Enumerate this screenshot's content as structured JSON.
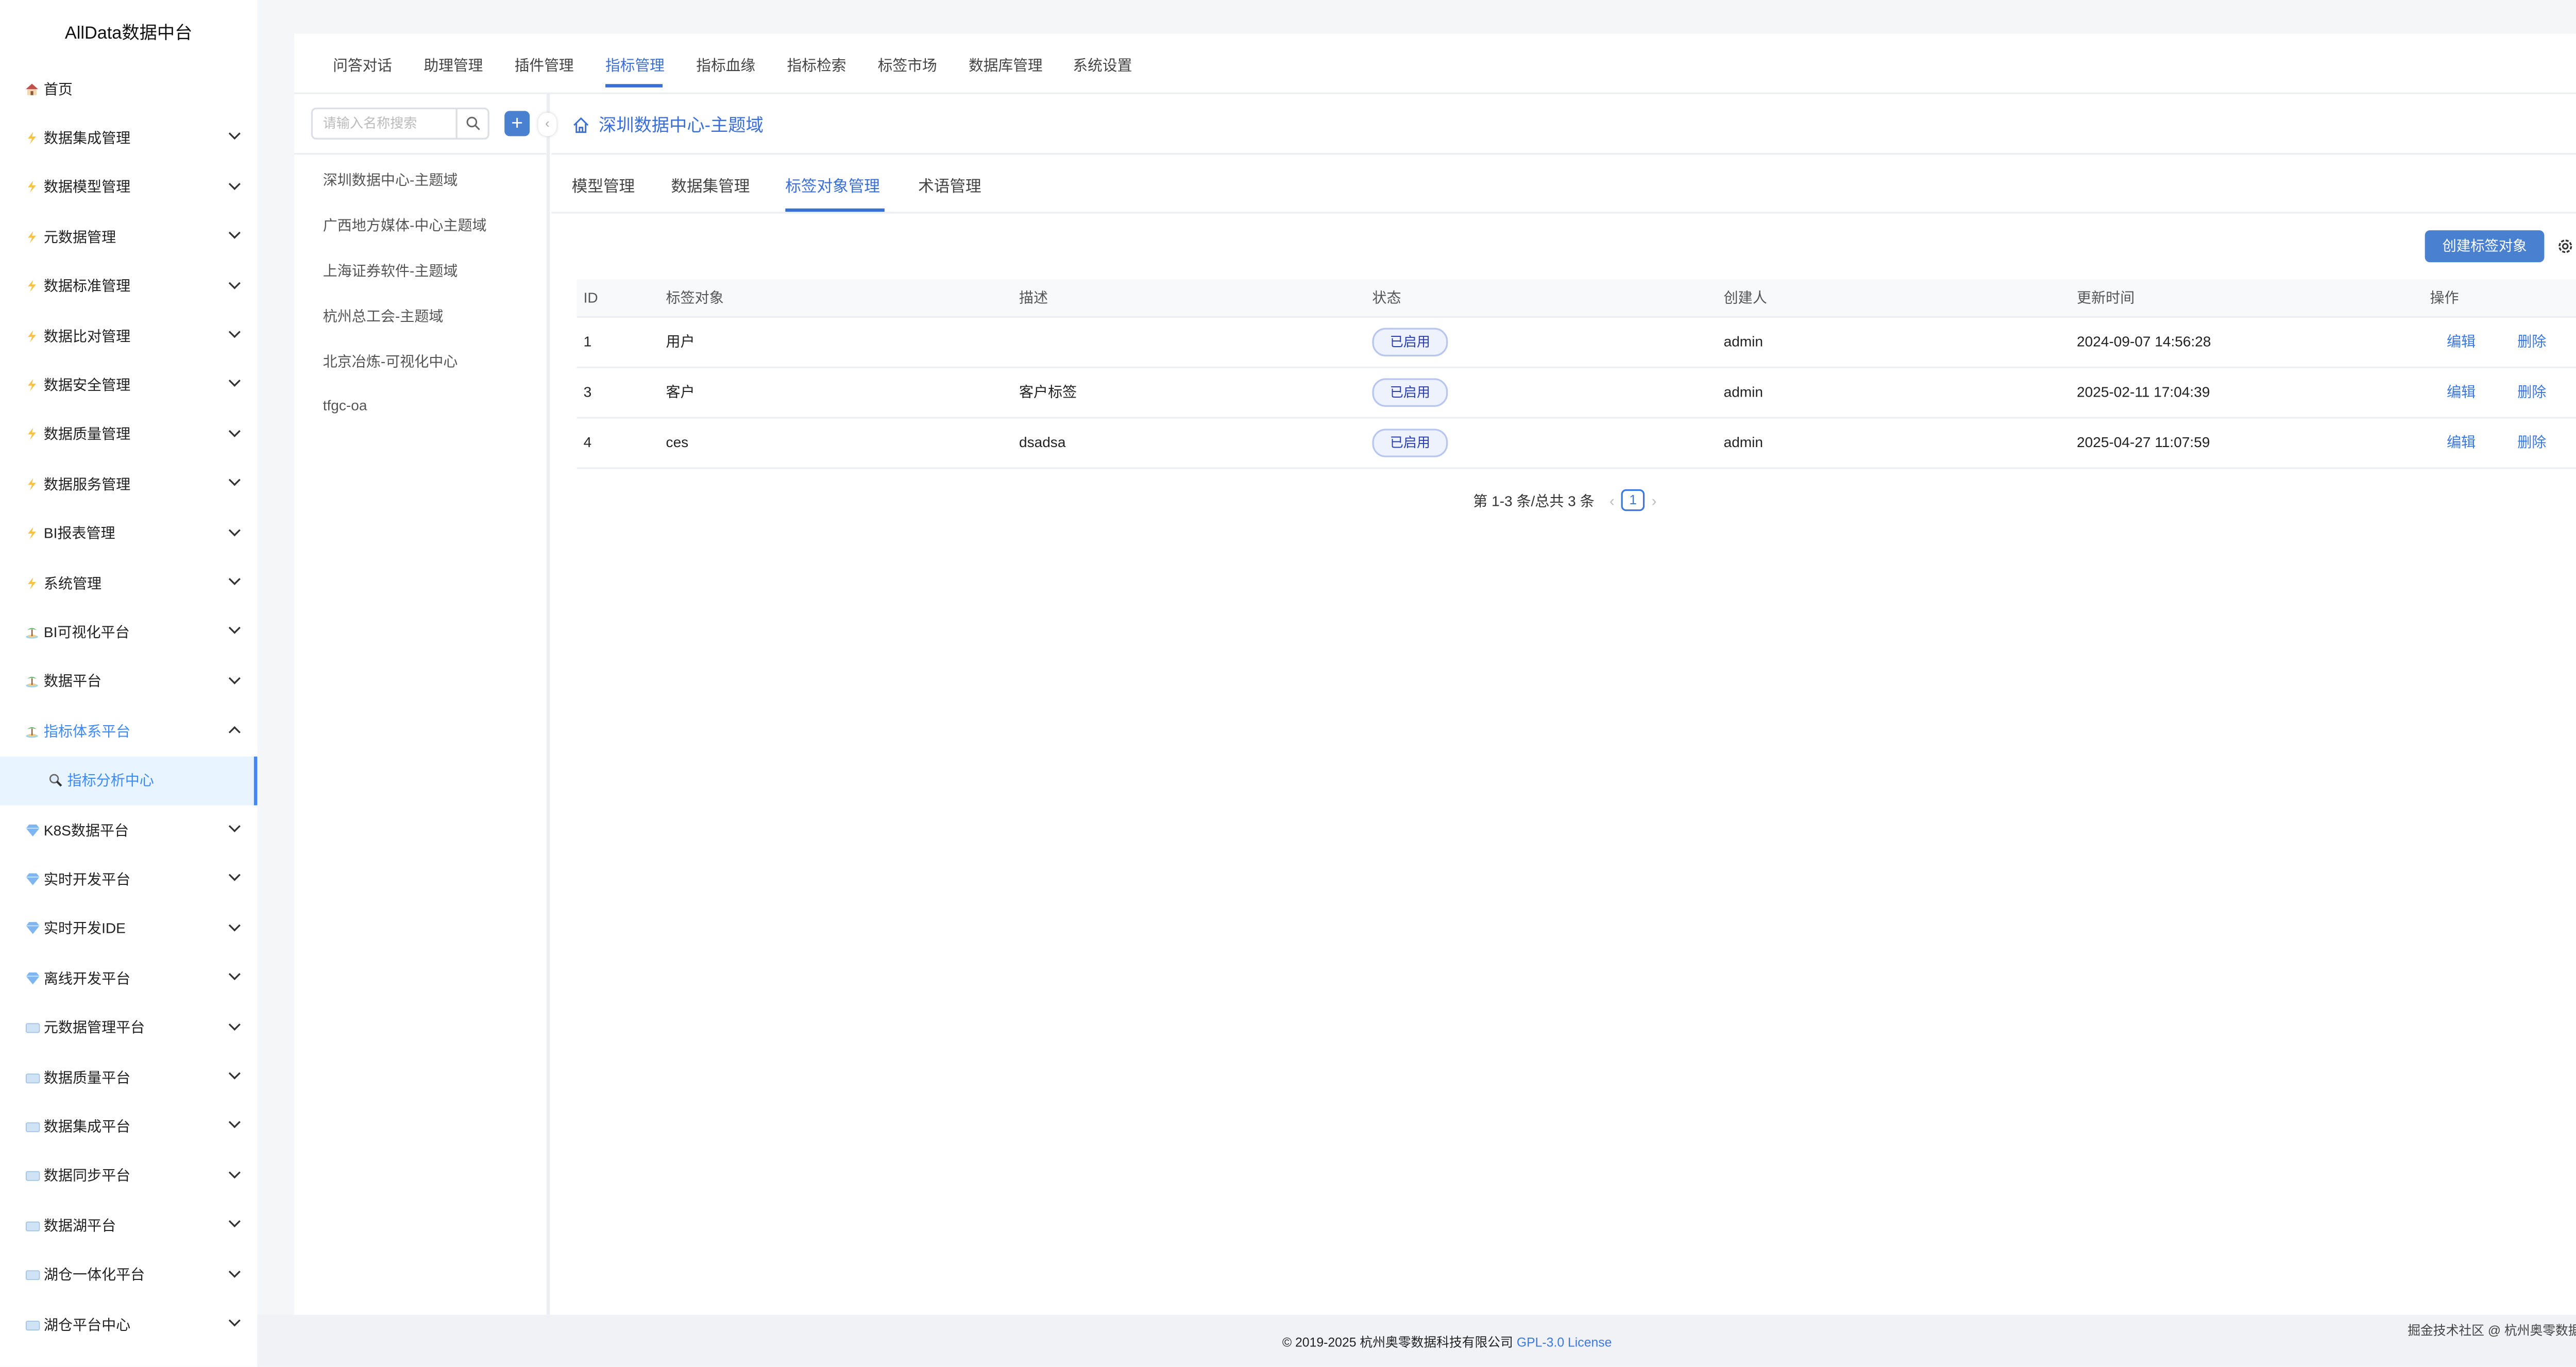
{
  "app_title": "AllData数据中台",
  "sidebar": {
    "items": [
      {
        "label": "首页",
        "icon": "house-icon",
        "chev": ""
      },
      {
        "label": "数据集成管理",
        "icon": "lightning-icon",
        "chev": "down"
      },
      {
        "label": "数据模型管理",
        "icon": "lightning-icon",
        "chev": "down"
      },
      {
        "label": "元数据管理",
        "icon": "lightning-icon",
        "chev": "down"
      },
      {
        "label": "数据标准管理",
        "icon": "lightning-icon",
        "chev": "down"
      },
      {
        "label": "数据比对管理",
        "icon": "lightning-icon",
        "chev": "down"
      },
      {
        "label": "数据安全管理",
        "icon": "lightning-icon",
        "chev": "down"
      },
      {
        "label": "数据质量管理",
        "icon": "lightning-icon",
        "chev": "down"
      },
      {
        "label": "数据服务管理",
        "icon": "lightning-icon",
        "chev": "down"
      },
      {
        "label": "BI报表管理",
        "icon": "lightning-icon",
        "chev": "down"
      },
      {
        "label": "系统管理",
        "icon": "lightning-icon",
        "chev": "down"
      },
      {
        "label": "BI可视化平台",
        "icon": "island-icon",
        "chev": "down"
      },
      {
        "label": "数据平台",
        "icon": "island-icon",
        "chev": "down"
      },
      {
        "label": "指标体系平台",
        "icon": "island-icon",
        "chev": "up",
        "open": true
      },
      {
        "label": "指标分析中心",
        "icon": "magnifier-icon",
        "chev": "",
        "sub": true
      },
      {
        "label": "K8S数据平台",
        "icon": "gem-icon",
        "chev": "down"
      },
      {
        "label": "实时开发平台",
        "icon": "gem-icon",
        "chev": "down"
      },
      {
        "label": "实时开发IDE",
        "icon": "gem-icon",
        "chev": "down"
      },
      {
        "label": "离线开发平台",
        "icon": "gem-icon",
        "chev": "down"
      },
      {
        "label": "元数据管理平台",
        "icon": "ice-cube-icon",
        "chev": "down"
      },
      {
        "label": "数据质量平台",
        "icon": "ice-cube-icon",
        "chev": "down"
      },
      {
        "label": "数据集成平台",
        "icon": "ice-cube-icon",
        "chev": "down"
      },
      {
        "label": "数据同步平台",
        "icon": "ice-cube-icon",
        "chev": "down"
      },
      {
        "label": "数据湖平台",
        "icon": "ice-cube-icon",
        "chev": "down"
      },
      {
        "label": "湖仓一体化平台",
        "icon": "ice-cube-icon",
        "chev": "down"
      },
      {
        "label": "湖仓平台中心",
        "icon": "ice-cube-icon",
        "chev": "down"
      }
    ]
  },
  "top_tabs": [
    {
      "label": "问答对话"
    },
    {
      "label": "助理管理"
    },
    {
      "label": "插件管理"
    },
    {
      "label": "指标管理",
      "active": true
    },
    {
      "label": "指标血缘"
    },
    {
      "label": "指标检索"
    },
    {
      "label": "标签市场"
    },
    {
      "label": "数据库管理"
    },
    {
      "label": "系统设置"
    }
  ],
  "left_panel": {
    "search_placeholder": "请输入名称搜索",
    "add_label": "+",
    "tree": [
      "深圳数据中心-主题域",
      "广西地方媒体-中心主题域",
      "上海证券软件-主题域",
      "杭州总工会-主题域",
      "北京冶炼-可视化中心",
      "tfgc-oa"
    ]
  },
  "breadcrumb": "深圳数据中心-主题域",
  "sub_tabs": [
    {
      "label": "模型管理"
    },
    {
      "label": "数据集管理"
    },
    {
      "label": "标签对象管理",
      "active": true
    },
    {
      "label": "术语管理"
    }
  ],
  "create_button": "创建标签对象",
  "table": {
    "columns": [
      "ID",
      "标签对象",
      "描述",
      "状态",
      "创建人",
      "更新时间",
      "操作"
    ],
    "rows": [
      {
        "id": "1",
        "name": "用户",
        "desc": "",
        "status": "已启用",
        "creator": "admin",
        "updated": "2024-09-07 14:56:28",
        "edit": "编辑",
        "delete": "删除"
      },
      {
        "id": "3",
        "name": "客户",
        "desc": "客户标签",
        "status": "已启用",
        "creator": "admin",
        "updated": "2025-02-11 17:04:39",
        "edit": "编辑",
        "delete": "删除"
      },
      {
        "id": "4",
        "name": "ces",
        "desc": "dsadsa",
        "status": "已启用",
        "creator": "admin",
        "updated": "2025-04-27 11:07:59",
        "edit": "编辑",
        "delete": "删除"
      }
    ]
  },
  "pagination": {
    "summary": "第 1-3 条/总共 3 条",
    "current": "1"
  },
  "footer": {
    "copyright": "© 2019-2025 杭州奥零数据科技有限公司",
    "license": "GPL-3.0 License",
    "right": "掘金技术社区 @ 杭州奥零数据科技"
  },
  "colors": {
    "accent": "#3b6fd8",
    "primary_button": "#4a80d0",
    "active_menu_bg": "#e8f4ff",
    "badge_bg": "#eef2fd"
  }
}
